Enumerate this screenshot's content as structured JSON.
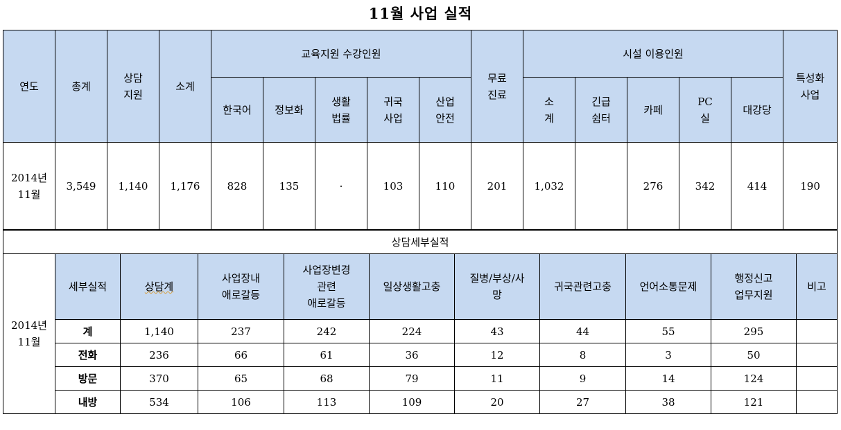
{
  "title": "11월 사업 실적",
  "top_table": {
    "headers": {
      "year": "연도",
      "total": "총계",
      "counsel": [
        "상담",
        "지원"
      ],
      "subtotal": "소계",
      "edu_group": "교육지원 수강인원",
      "korean": "한국어",
      "it": "정보화",
      "law": [
        "생활",
        "법률"
      ],
      "return": [
        "귀국",
        "사업"
      ],
      "safety": [
        "산업",
        "안전"
      ],
      "free_care": [
        "무료",
        "진료"
      ],
      "facility_group": "시설 이용인원",
      "fac_subtotal": [
        "소",
        "계"
      ],
      "shelter": [
        "긴급",
        "쉼터"
      ],
      "cafe": "카페",
      "pc": [
        "PC",
        "실"
      ],
      "hall": "대강당",
      "special": [
        "특성화",
        "사업"
      ]
    },
    "row": {
      "year": [
        "2014년",
        "11월"
      ],
      "total": "3,549",
      "counsel": "1,140",
      "subtotal": "1,176",
      "korean": "828",
      "it": "135",
      "law": "·",
      "return": "103",
      "safety": "110",
      "free_care": "201",
      "fac_subtotal": "1,032",
      "shelter": "",
      "cafe": "276",
      "pc": "342",
      "hall": "414",
      "special": "190"
    }
  },
  "detail_table": {
    "section_title": "상담세부실적",
    "year": [
      "2014년",
      "11월"
    ],
    "headers": {
      "detail": "세부실적",
      "counsel_total": "상담계",
      "workplace": [
        "사업장내",
        "애로갈등"
      ],
      "change": [
        "사업장변경",
        "관련",
        "애로갈등"
      ],
      "daily": "일상생활고충",
      "illness": [
        "질병/부상/사",
        "망"
      ],
      "returning": "귀국관련고충",
      "language": "언어소통문제",
      "admin": [
        "행정신고",
        "업무지원"
      ],
      "note": "비고"
    },
    "rows": [
      {
        "label": "계",
        "values": [
          "1,140",
          "237",
          "242",
          "224",
          "43",
          "44",
          "55",
          "295",
          ""
        ]
      },
      {
        "label": "전화",
        "values": [
          "236",
          "66",
          "61",
          "36",
          "12",
          "8",
          "3",
          "50",
          ""
        ]
      },
      {
        "label": "방문",
        "values": [
          "370",
          "65",
          "68",
          "79",
          "11",
          "9",
          "14",
          "124",
          ""
        ]
      },
      {
        "label": "내방",
        "values": [
          "534",
          "106",
          "113",
          "109",
          "20",
          "27",
          "38",
          "121",
          ""
        ]
      }
    ]
  }
}
